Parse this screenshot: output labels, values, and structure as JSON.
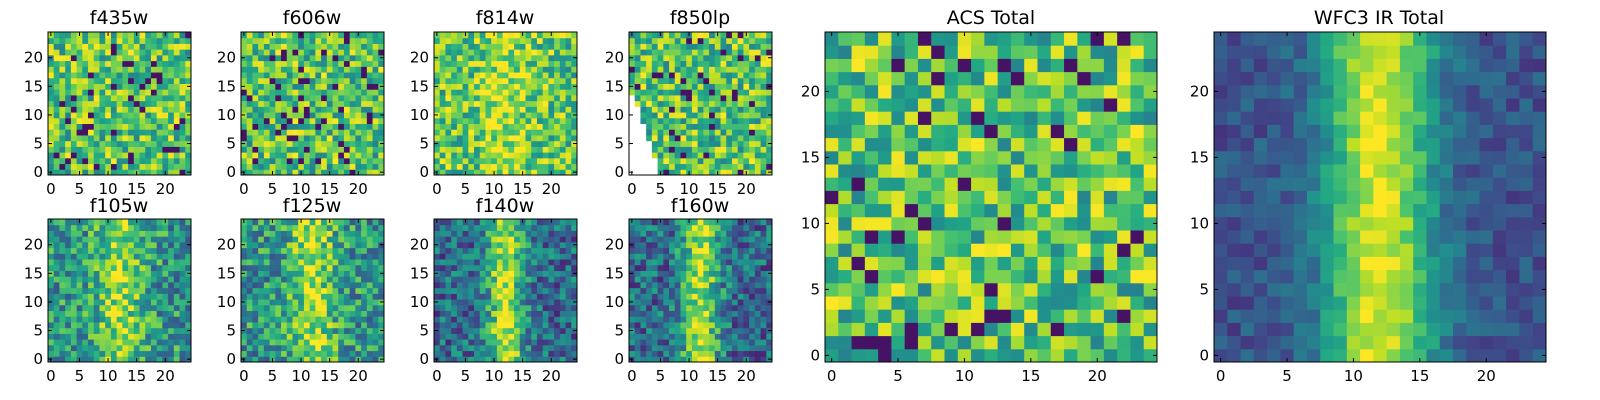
{
  "chart_data": [
    {
      "type": "heatmap",
      "title": "f435w",
      "colormap": "viridis",
      "xlim": [
        -0.5,
        24.5
      ],
      "ylim": [
        -0.5,
        24.5
      ],
      "xticks": [
        0,
        5,
        10,
        15,
        20
      ],
      "yticks": [
        0,
        5,
        10,
        15,
        20
      ],
      "band": "none",
      "mask": "none",
      "seed": 11
    },
    {
      "type": "heatmap",
      "title": "f606w",
      "colormap": "viridis",
      "xlim": [
        -0.5,
        24.5
      ],
      "ylim": [
        -0.5,
        24.5
      ],
      "xticks": [
        0,
        5,
        10,
        15,
        20
      ],
      "yticks": [
        0,
        5,
        10,
        15,
        20
      ],
      "band": "none",
      "mask": "none",
      "seed": 23
    },
    {
      "type": "heatmap",
      "title": "f814w",
      "colormap": "viridis",
      "xlim": [
        -0.5,
        24.5
      ],
      "ylim": [
        -0.5,
        24.5
      ],
      "xticks": [
        0,
        5,
        10,
        15,
        20
      ],
      "yticks": [
        0,
        5,
        10,
        15,
        20
      ],
      "band": "weak",
      "mask": "none",
      "seed": 37
    },
    {
      "type": "heatmap",
      "title": "f850lp",
      "colormap": "viridis",
      "xlim": [
        -0.5,
        24.5
      ],
      "ylim": [
        -0.5,
        24.5
      ],
      "xticks": [
        0,
        5,
        10,
        15,
        20
      ],
      "yticks": [
        0,
        5,
        10,
        15,
        20
      ],
      "band": "none",
      "mask": "lower-left",
      "seed": 41
    },
    {
      "type": "heatmap",
      "title": "f105w",
      "colormap": "viridis",
      "xlim": [
        -0.5,
        24.5
      ],
      "ylim": [
        -0.5,
        24.5
      ],
      "xticks": [
        0,
        5,
        10,
        15,
        20
      ],
      "yticks": [
        0,
        5,
        10,
        15,
        20
      ],
      "band": "medium",
      "mask": "none",
      "seed": 53
    },
    {
      "type": "heatmap",
      "title": "f125w",
      "colormap": "viridis",
      "xlim": [
        -0.5,
        24.5
      ],
      "ylim": [
        -0.5,
        24.5
      ],
      "xticks": [
        0,
        5,
        10,
        15,
        20
      ],
      "yticks": [
        0,
        5,
        10,
        15,
        20
      ],
      "band": "medium",
      "mask": "none",
      "seed": 67
    },
    {
      "type": "heatmap",
      "title": "f140w",
      "colormap": "viridis",
      "xlim": [
        -0.5,
        24.5
      ],
      "ylim": [
        -0.5,
        24.5
      ],
      "xticks": [
        0,
        5,
        10,
        15,
        20
      ],
      "yticks": [
        0,
        5,
        10,
        15,
        20
      ],
      "band": "strong",
      "mask": "none",
      "seed": 71
    },
    {
      "type": "heatmap",
      "title": "f160w",
      "colormap": "viridis",
      "xlim": [
        -0.5,
        24.5
      ],
      "ylim": [
        -0.5,
        24.5
      ],
      "xticks": [
        0,
        5,
        10,
        15,
        20
      ],
      "yticks": [
        0,
        5,
        10,
        15,
        20
      ],
      "band": "strong",
      "mask": "none",
      "seed": 83
    },
    {
      "type": "heatmap",
      "title": "ACS Total",
      "colormap": "viridis",
      "xlim": [
        -0.5,
        24.5
      ],
      "ylim": [
        -0.5,
        24.5
      ],
      "xticks": [
        0,
        5,
        10,
        15,
        20
      ],
      "yticks": [
        0,
        5,
        10,
        15,
        20
      ],
      "band": "none",
      "mask": "none",
      "seed": 97
    },
    {
      "type": "heatmap",
      "title": "WFC3 IR Total",
      "colormap": "viridis",
      "xlim": [
        -0.5,
        24.5
      ],
      "ylim": [
        -0.5,
        24.5
      ],
      "xticks": [
        0,
        5,
        10,
        15,
        20
      ],
      "yticks": [
        0,
        5,
        10,
        15,
        20
      ],
      "band": "smooth",
      "mask": "none",
      "seed": 101
    }
  ]
}
